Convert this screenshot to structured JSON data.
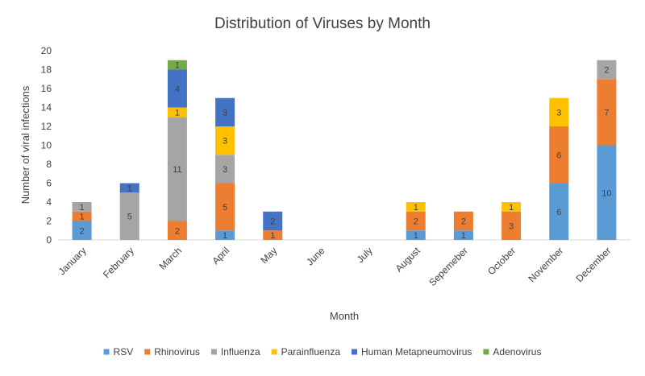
{
  "chart_data": {
    "type": "bar",
    "stacked": true,
    "title": "Distribution of Viruses by Month",
    "xlabel": "Month",
    "ylabel": "Number of viral infections",
    "ylim": [
      0,
      20
    ],
    "yticks": [
      0,
      2,
      4,
      6,
      8,
      10,
      12,
      14,
      16,
      18,
      20
    ],
    "grid": false,
    "legend": "bottom",
    "categories": [
      "January",
      "February",
      "March",
      "April",
      "May",
      "June",
      "July",
      "August",
      "Sepemeber",
      "October",
      "November",
      "December"
    ],
    "series": [
      {
        "name": "RSV",
        "color": "#5b9bd5",
        "values": [
          2,
          0,
          0,
          1,
          0,
          0,
          0,
          1,
          1,
          0,
          6,
          10
        ]
      },
      {
        "name": "Rhinovirus",
        "color": "#ed7d31",
        "values": [
          1,
          0,
          2,
          5,
          1,
          0,
          0,
          2,
          2,
          3,
          6,
          7
        ]
      },
      {
        "name": "Influenza",
        "color": "#a5a5a5",
        "values": [
          1,
          5,
          11,
          3,
          0,
          0,
          0,
          0,
          0,
          0,
          0,
          2
        ]
      },
      {
        "name": "Parainfluenza",
        "color": "#ffc000",
        "values": [
          0,
          0,
          1,
          3,
          0,
          0,
          0,
          1,
          0,
          1,
          3,
          0
        ]
      },
      {
        "name": "Human Metapneumovirus",
        "color": "#4472c4",
        "values": [
          0,
          1,
          4,
          3,
          2,
          0,
          0,
          0,
          0,
          0,
          0,
          0
        ]
      },
      {
        "name": "Adenovirus",
        "color": "#70ad47",
        "values": [
          0,
          0,
          1,
          0,
          0,
          0,
          0,
          0,
          0,
          0,
          0,
          0
        ]
      }
    ]
  }
}
